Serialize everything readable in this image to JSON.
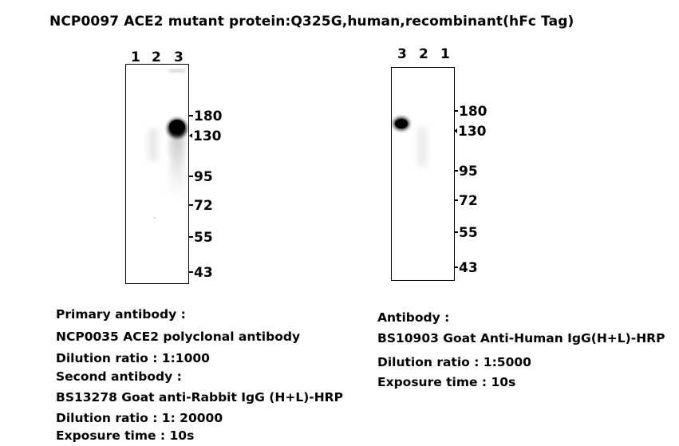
{
  "title": "NCP0097  ACE2 mutant protein:Q325G,human,recombinant(hFc Tag)",
  "left_blot": {
    "lanes": [
      "1",
      "2",
      "3"
    ],
    "markers": [
      "180",
      "130",
      "95",
      "72",
      "55",
      "43"
    ],
    "info": {
      "primary_heading": "Primary antibody :",
      "primary_value": "NCP0035  ACE2 polyclonal antibody",
      "dilution1": "Dilution ratio : 1:1000",
      "second_heading": "Second antibody :",
      "second_value": "BS13278 Goat anti-Rabbit IgG (H+L)-HRP",
      "dilution2": "Dilution ratio : 1: 20000",
      "exposure": "Exposure time : 10s"
    }
  },
  "right_blot": {
    "lanes": [
      "3",
      "2",
      "1"
    ],
    "markers": [
      "180",
      "130",
      "95",
      "72",
      "55",
      "43"
    ],
    "info": {
      "antibody_heading": "Antibody :",
      "antibody_value": "BS10903 Goat Anti-Human IgG(H+L)-HRP",
      "dilution": "Dilution ratio : 1:5000",
      "exposure": "Exposure time : 10s"
    }
  }
}
